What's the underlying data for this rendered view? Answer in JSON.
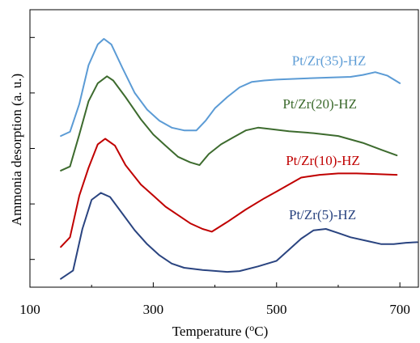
{
  "colors": {
    "axis": "#000000",
    "series_35": "#5b9bd5",
    "series_20": "#3d6b2e",
    "series_10": "#c00000",
    "series_5": "#2a4480"
  },
  "chart_data": {
    "type": "line",
    "title": "",
    "xlabel": "Temperature (oC)",
    "xlabel_parts": {
      "before": "Temperature (",
      "sup": "o",
      "after": "C)"
    },
    "ylabel": "Ammonia desorption (a. u.)",
    "xlim": [
      100,
      730
    ],
    "ylim": [
      0,
      10
    ],
    "x_ticks": [
      100,
      300,
      500,
      700
    ],
    "x_tick_labels": [
      "100",
      "300",
      "500",
      "700"
    ],
    "x_minor_ticks": [
      200,
      400,
      600
    ],
    "y_ticks": [
      1,
      3,
      5,
      7,
      9
    ],
    "y_tick_labels": [
      "",
      "",
      "",
      "",
      ""
    ],
    "grid": false,
    "legend": "inline labels next to curves",
    "series": [
      {
        "name": "Pt/Zr(35)-HZ",
        "color": "#5b9bd5",
        "label_at": {
          "x": 525,
          "y": 8.0
        },
        "points": [
          [
            150,
            5.45
          ],
          [
            165,
            5.6
          ],
          [
            180,
            6.6
          ],
          [
            195,
            8.0
          ],
          [
            210,
            8.75
          ],
          [
            220,
            8.95
          ],
          [
            232,
            8.75
          ],
          [
            250,
            7.9
          ],
          [
            270,
            7.0
          ],
          [
            290,
            6.4
          ],
          [
            310,
            6.0
          ],
          [
            330,
            5.75
          ],
          [
            350,
            5.65
          ],
          [
            370,
            5.65
          ],
          [
            385,
            6.0
          ],
          [
            400,
            6.45
          ],
          [
            420,
            6.85
          ],
          [
            440,
            7.2
          ],
          [
            460,
            7.4
          ],
          [
            480,
            7.45
          ],
          [
            500,
            7.48
          ],
          [
            540,
            7.52
          ],
          [
            580,
            7.55
          ],
          [
            620,
            7.58
          ],
          [
            640,
            7.65
          ],
          [
            660,
            7.75
          ],
          [
            680,
            7.62
          ],
          [
            700,
            7.35
          ]
        ]
      },
      {
        "name": "Pt/Zr(20)-HZ",
        "color": "#3d6b2e",
        "label_at": {
          "x": 510,
          "y": 6.45
        },
        "points": [
          [
            150,
            4.2
          ],
          [
            165,
            4.35
          ],
          [
            180,
            5.5
          ],
          [
            195,
            6.7
          ],
          [
            210,
            7.35
          ],
          [
            225,
            7.6
          ],
          [
            235,
            7.45
          ],
          [
            255,
            6.85
          ],
          [
            280,
            6.05
          ],
          [
            300,
            5.5
          ],
          [
            320,
            5.1
          ],
          [
            340,
            4.7
          ],
          [
            360,
            4.5
          ],
          [
            375,
            4.4
          ],
          [
            390,
            4.8
          ],
          [
            410,
            5.15
          ],
          [
            430,
            5.4
          ],
          [
            450,
            5.65
          ],
          [
            470,
            5.75
          ],
          [
            490,
            5.7
          ],
          [
            520,
            5.62
          ],
          [
            560,
            5.55
          ],
          [
            600,
            5.45
          ],
          [
            640,
            5.2
          ],
          [
            670,
            4.95
          ],
          [
            695,
            4.75
          ]
        ]
      },
      {
        "name": "Pt/Zr(10)-HZ",
        "color": "#c00000",
        "label_at": {
          "x": 515,
          "y": 4.4
        },
        "points": [
          [
            150,
            1.45
          ],
          [
            165,
            1.8
          ],
          [
            180,
            3.3
          ],
          [
            195,
            4.3
          ],
          [
            210,
            5.15
          ],
          [
            222,
            5.35
          ],
          [
            238,
            5.1
          ],
          [
            255,
            4.4
          ],
          [
            280,
            3.7
          ],
          [
            300,
            3.3
          ],
          [
            320,
            2.9
          ],
          [
            340,
            2.6
          ],
          [
            360,
            2.3
          ],
          [
            380,
            2.1
          ],
          [
            395,
            2.0
          ],
          [
            420,
            2.35
          ],
          [
            450,
            2.8
          ],
          [
            480,
            3.2
          ],
          [
            500,
            3.45
          ],
          [
            520,
            3.7
          ],
          [
            540,
            3.95
          ],
          [
            570,
            4.05
          ],
          [
            600,
            4.1
          ],
          [
            630,
            4.1
          ],
          [
            660,
            4.08
          ],
          [
            695,
            4.05
          ]
        ]
      },
      {
        "name": "Pt/Zr(5)-HZ",
        "color": "#2a4480",
        "label_at": {
          "x": 520,
          "y": 2.45
        },
        "points": [
          [
            150,
            0.3
          ],
          [
            170,
            0.6
          ],
          [
            185,
            2.1
          ],
          [
            200,
            3.15
          ],
          [
            215,
            3.4
          ],
          [
            230,
            3.25
          ],
          [
            250,
            2.65
          ],
          [
            270,
            2.05
          ],
          [
            290,
            1.55
          ],
          [
            310,
            1.15
          ],
          [
            330,
            0.85
          ],
          [
            350,
            0.7
          ],
          [
            380,
            0.62
          ],
          [
            420,
            0.55
          ],
          [
            440,
            0.58
          ],
          [
            470,
            0.75
          ],
          [
            500,
            0.95
          ],
          [
            520,
            1.35
          ],
          [
            540,
            1.75
          ],
          [
            560,
            2.05
          ],
          [
            580,
            2.1
          ],
          [
            600,
            1.95
          ],
          [
            620,
            1.8
          ],
          [
            650,
            1.65
          ],
          [
            670,
            1.55
          ],
          [
            690,
            1.55
          ],
          [
            710,
            1.6
          ],
          [
            728,
            1.62
          ]
        ]
      }
    ]
  }
}
